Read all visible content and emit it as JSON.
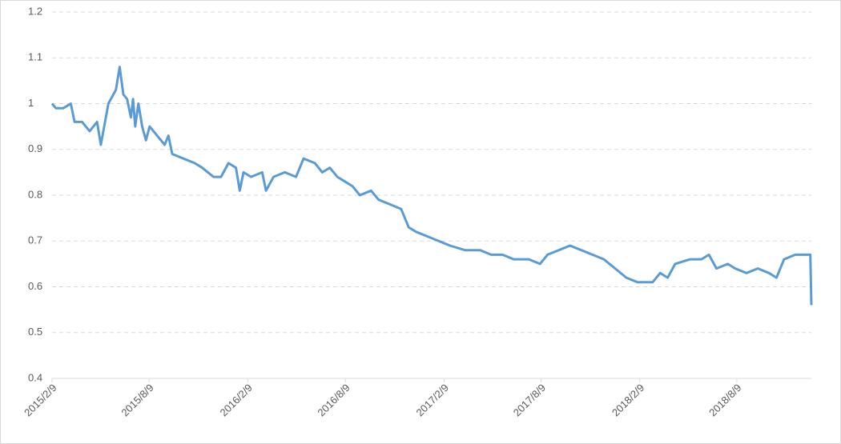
{
  "chart_data": {
    "type": "line",
    "color": "#5b9bd5",
    "grid": true,
    "x": [
      "2015/2/9",
      "2015/2/16",
      "2015/3/2",
      "2015/3/16",
      "2015/3/23",
      "2015/4/6",
      "2015/4/20",
      "2015/5/4",
      "2015/5/11",
      "2015/5/25",
      "2015/6/8",
      "2015/6/15",
      "2015/6/22",
      "2015/6/29",
      "2015/7/6",
      "2015/7/10",
      "2015/7/14",
      "2015/7/20",
      "2015/7/27",
      "2015/8/3",
      "2015/8/10",
      "2015/8/24",
      "2015/9/7",
      "2015/9/14",
      "2015/9/21",
      "2015/10/12",
      "2015/11/2",
      "2015/11/16",
      "2015/12/7",
      "2015/12/21",
      "2016/1/4",
      "2016/1/18",
      "2016/1/25",
      "2016/2/1",
      "2016/2/15",
      "2016/3/7",
      "2016/3/14",
      "2016/3/28",
      "2016/4/18",
      "2016/5/9",
      "2016/5/23",
      "2016/6/13",
      "2016/6/27",
      "2016/7/11",
      "2016/7/25",
      "2016/8/8",
      "2016/8/22",
      "2016/9/5",
      "2016/9/26",
      "2016/10/10",
      "2016/10/31",
      "2016/11/21",
      "2016/12/5",
      "2016/12/19",
      "2017/1/9",
      "2017/1/30",
      "2017/2/20",
      "2017/3/20",
      "2017/4/17",
      "2017/5/8",
      "2017/5/29",
      "2017/6/19",
      "2017/7/17",
      "2017/8/7",
      "2017/8/21",
      "2017/9/11",
      "2017/10/2",
      "2017/10/23",
      "2017/11/13",
      "2017/12/4",
      "2017/12/25",
      "2018/1/15",
      "2018/2/5",
      "2018/3/5",
      "2018/3/19",
      "2018/4/2",
      "2018/4/16",
      "2018/5/14",
      "2018/6/4",
      "2018/6/18",
      "2018/7/2",
      "2018/7/23",
      "2018/8/6",
      "2018/8/27",
      "2018/9/17",
      "2018/10/8",
      "2018/10/22",
      "2018/11/5",
      "2018/11/26",
      "2018/12/10",
      "2018/12/24",
      "2018/12/26"
    ],
    "values": [
      1.0,
      0.99,
      0.99,
      1.0,
      0.96,
      0.96,
      0.94,
      0.96,
      0.91,
      1.0,
      1.03,
      1.08,
      1.02,
      1.01,
      0.97,
      1.01,
      0.95,
      1.0,
      0.95,
      0.92,
      0.95,
      0.93,
      0.91,
      0.93,
      0.89,
      0.88,
      0.87,
      0.86,
      0.84,
      0.84,
      0.87,
      0.86,
      0.81,
      0.85,
      0.84,
      0.85,
      0.81,
      0.84,
      0.85,
      0.84,
      0.88,
      0.87,
      0.85,
      0.86,
      0.84,
      0.83,
      0.82,
      0.8,
      0.81,
      0.79,
      0.78,
      0.77,
      0.73,
      0.72,
      0.71,
      0.7,
      0.69,
      0.68,
      0.68,
      0.67,
      0.67,
      0.66,
      0.66,
      0.65,
      0.67,
      0.68,
      0.69,
      0.68,
      0.67,
      0.66,
      0.64,
      0.62,
      0.61,
      0.61,
      0.63,
      0.62,
      0.65,
      0.66,
      0.66,
      0.67,
      0.64,
      0.65,
      0.64,
      0.63,
      0.64,
      0.63,
      0.62,
      0.66,
      0.67,
      0.67,
      0.67,
      0.56
    ],
    "xlim": [
      "2015/2/9",
      "2018/12/26"
    ],
    "xticks": [
      "2015/2/9",
      "2015/8/9",
      "2016/2/9",
      "2016/8/9",
      "2017/2/9",
      "2017/8/9",
      "2018/2/9",
      "2018/8/9"
    ],
    "ylim": [
      0.4,
      1.2
    ],
    "yticks": [
      0.4,
      0.5,
      0.6,
      0.7,
      0.8,
      0.9,
      1,
      1.1,
      1.2
    ]
  }
}
